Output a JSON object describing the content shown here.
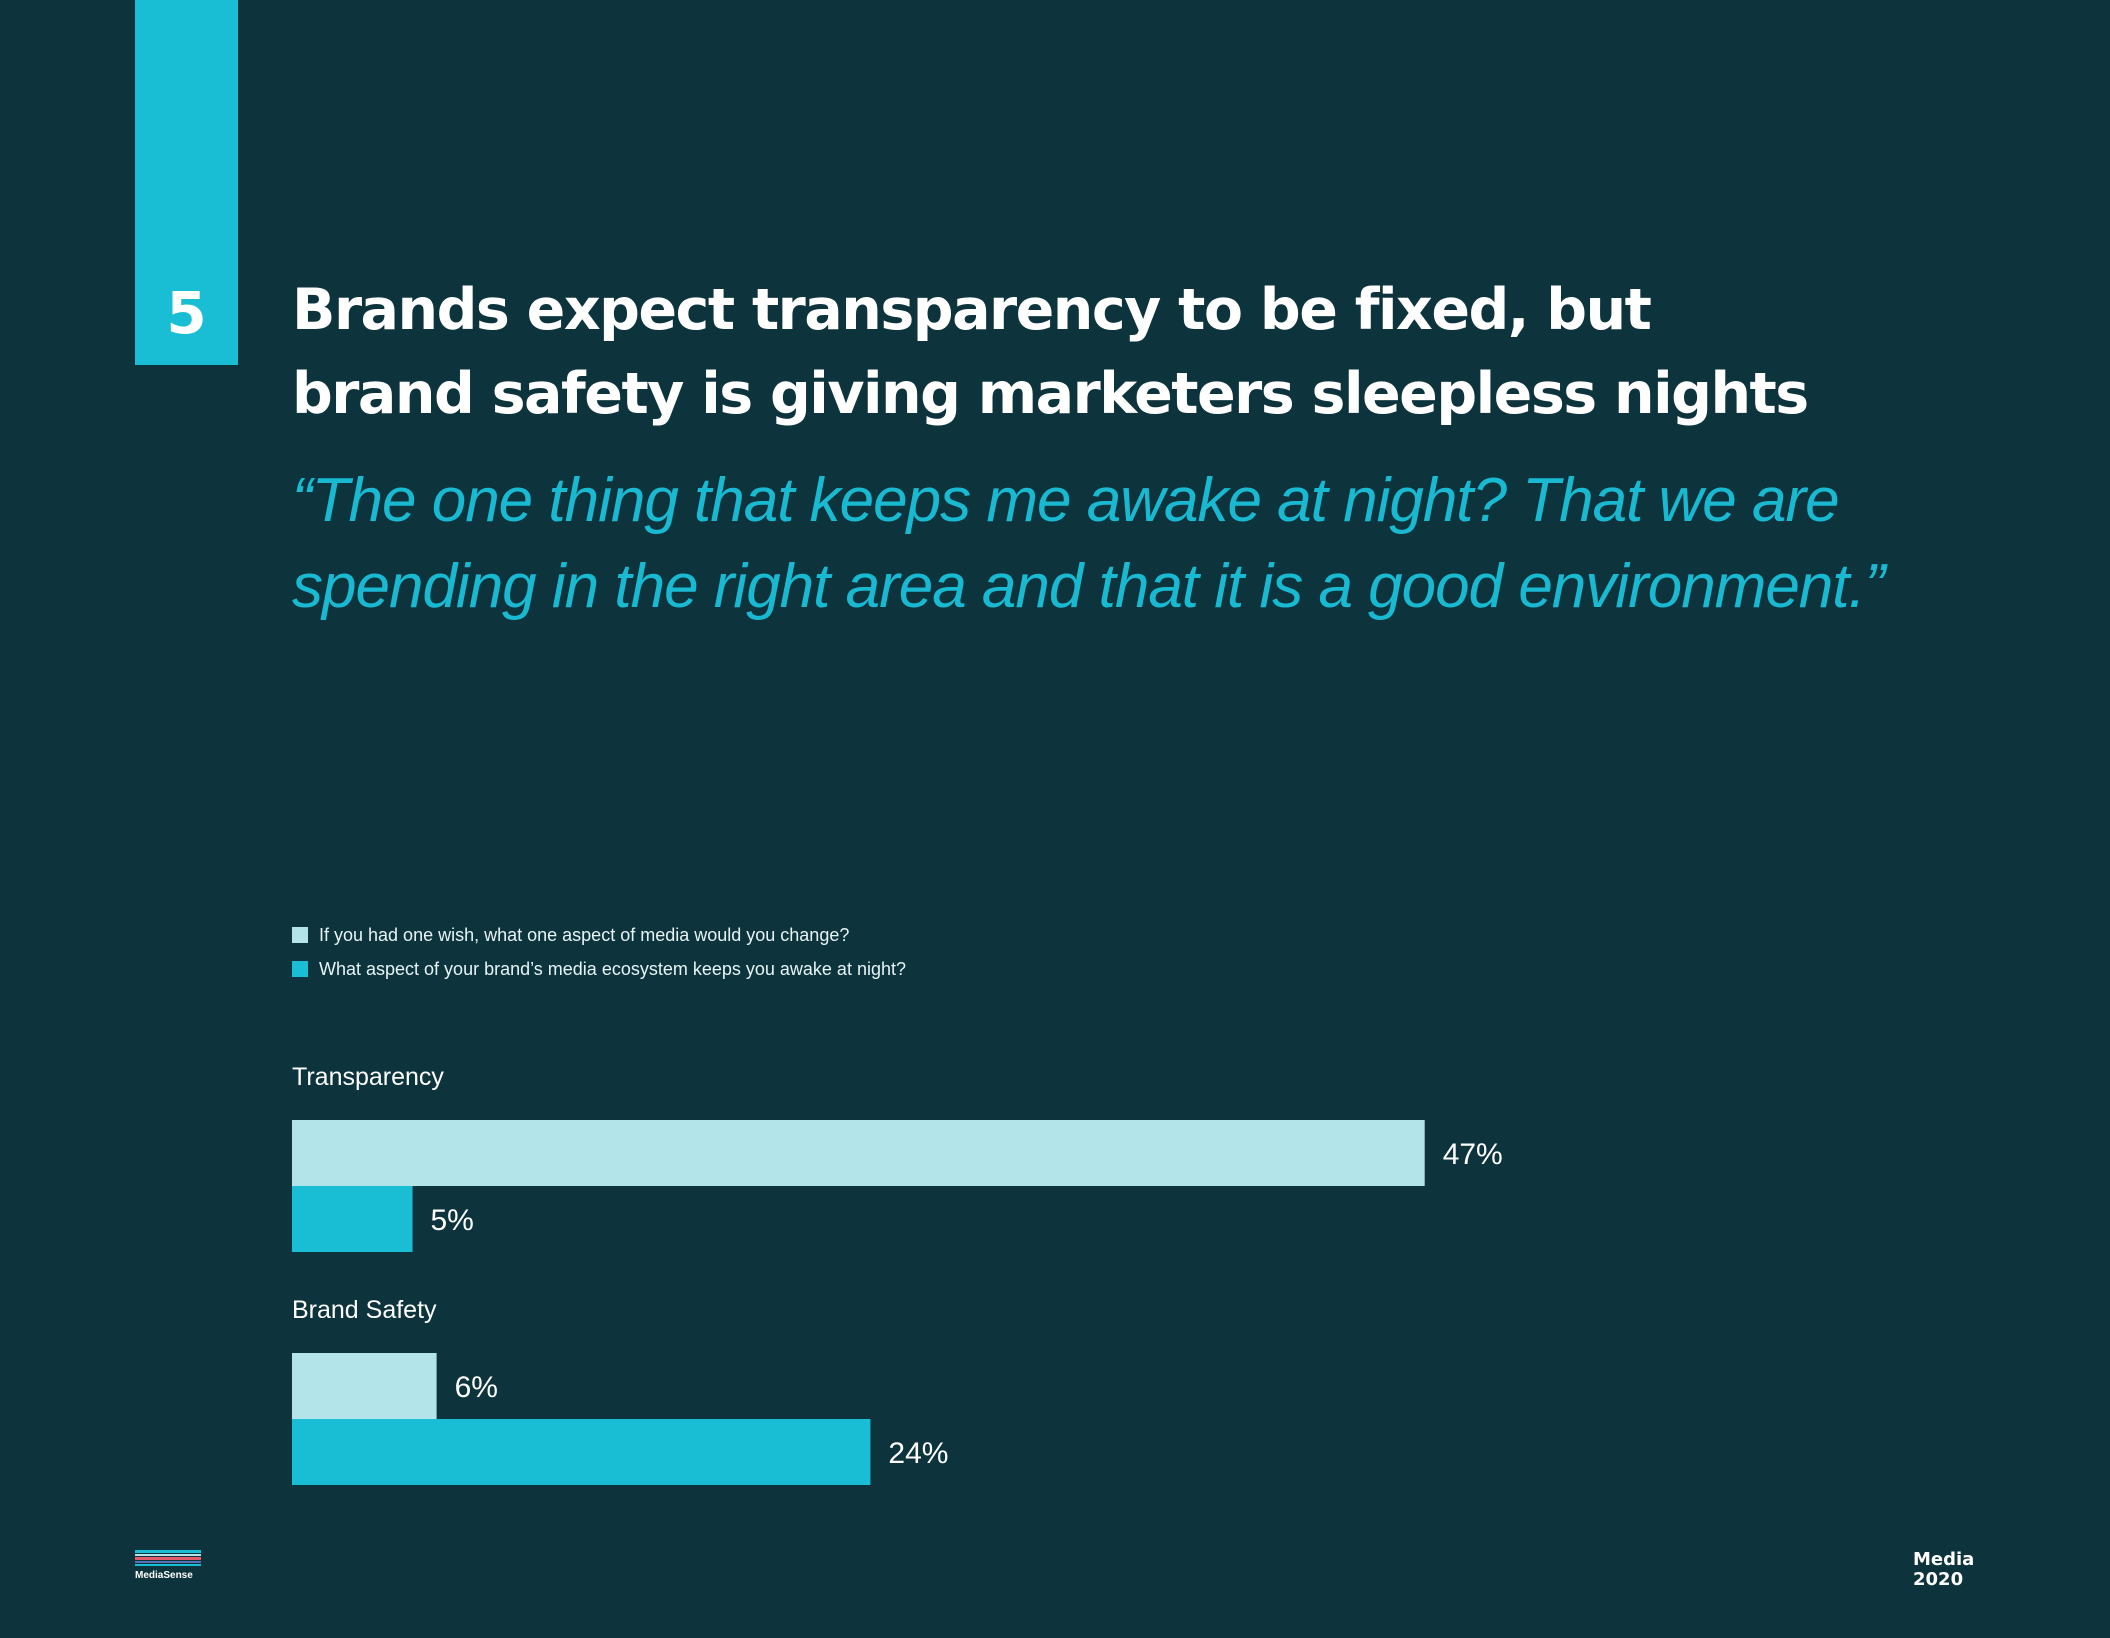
{
  "section": {
    "number": "5"
  },
  "headline": {
    "line1": "Brands expect transparency to be fixed, but",
    "line2": "brand safety is giving marketers sleepless nights"
  },
  "quote": {
    "line1": "“The one thing that keeps me awake at night? That we are",
    "line2": "spending in the right area and that it is a good environment.”"
  },
  "legend": {
    "items": [
      {
        "label": "If you had one wish, what one aspect of media would you change?",
        "color": "#b3e4ea"
      },
      {
        "label": "What aspect of your brand’s media ecosystem keeps you awake at night?",
        "color": "#1abed4"
      }
    ]
  },
  "chart_data": {
    "type": "bar",
    "orientation": "horizontal",
    "categories": [
      "Transparency",
      "Brand Safety"
    ],
    "series": [
      {
        "name": "If you had one wish, what one aspect of media would you change?",
        "values": [
          47,
          6
        ],
        "labels": [
          "47%",
          "6%"
        ],
        "color": "#b3e4ea"
      },
      {
        "name": "What aspect of your brand’s media ecosystem keeps you awake at night?",
        "values": [
          5,
          24
        ],
        "labels": [
          "5%",
          "24%"
        ],
        "color": "#1abed4"
      }
    ],
    "unit": "%",
    "xlim": [
      0,
      100
    ],
    "grid": false,
    "legend_position": "top-left"
  },
  "footer": {
    "logo_text": "MediaSense",
    "brand_line1": "Media",
    "brand_line2": "2020"
  }
}
